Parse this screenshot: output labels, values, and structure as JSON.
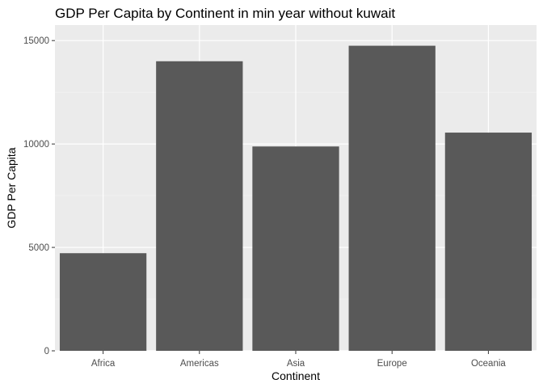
{
  "chart_data": {
    "type": "bar",
    "title": "GDP Per Capita by Continent in min year without kuwait",
    "xlabel": "Continent",
    "ylabel": "GDP Per Capita",
    "categories": [
      "Africa",
      "Americas",
      "Asia",
      "Europe",
      "Oceania"
    ],
    "values": [
      4720,
      14000,
      9880,
      14750,
      10550
    ],
    "ylim": [
      0,
      15750
    ],
    "yticks": [
      0,
      5000,
      10000,
      15000
    ],
    "ytick_labels": [
      "0",
      "5000",
      "10000",
      "15000"
    ],
    "grid": true,
    "legend": "none",
    "colors": {
      "bar": "#595959",
      "panel": "#ebebeb",
      "grid_major": "#ffffff",
      "grid_minor": "#f5f5f5",
      "tick": "#333333"
    }
  }
}
